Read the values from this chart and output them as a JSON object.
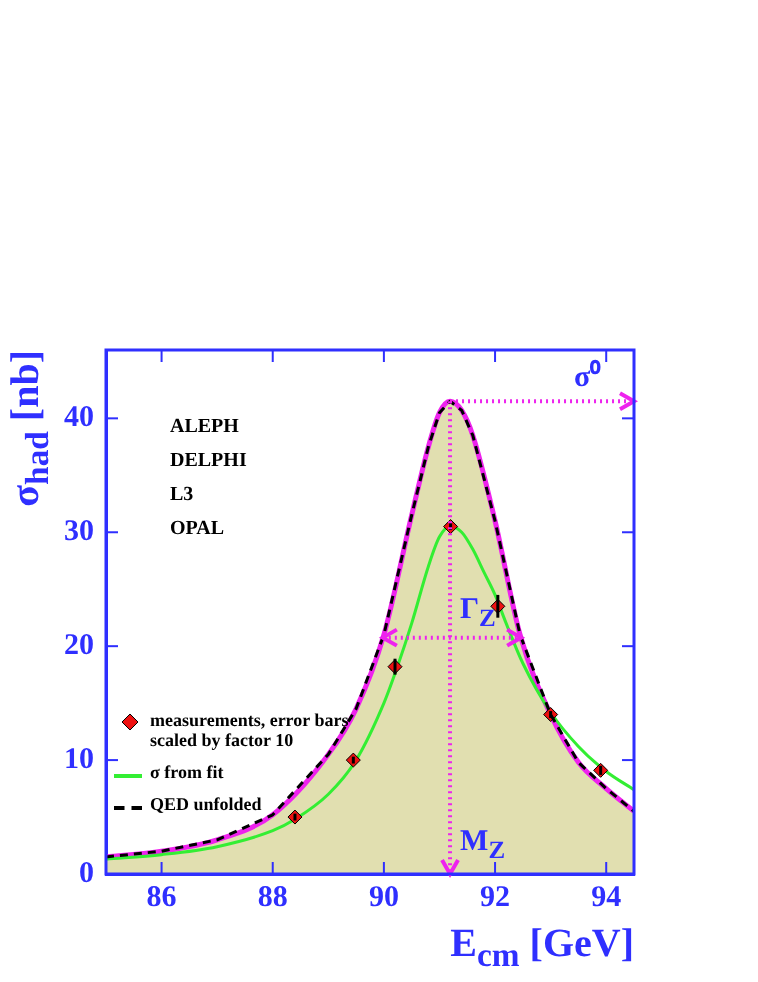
{
  "chart_data": {
    "type": "scatter",
    "xlabel": "E$_{cm}$ [GeV]",
    "ylabel": "σ$_{had}$ [nb]",
    "xlim": [
      85,
      94.5
    ],
    "xticks": [
      86,
      88,
      90,
      92,
      94
    ],
    "ylim": [
      0,
      46
    ],
    "yticks": [
      0,
      10,
      20,
      30,
      40
    ],
    "grid": false,
    "legend": "bottom left",
    "annotations": [
      "ALEPH",
      "DELPHI",
      "L3",
      "OPAL"
    ],
    "ref_lines": [
      {
        "axis": "y",
        "value": 41.5,
        "label": "σ⁰",
        "color": "#ee22ee",
        "line_style": "dotted"
      },
      {
        "axis": "x",
        "value": 91.19,
        "label": "M$_{Z}$",
        "color": "#ee22ee",
        "line_style": "dotted"
      },
      {
        "axis": "y",
        "value": 20.75,
        "label": "Γ$_{Z}$",
        "color": "#ee22ee",
        "line_style": "dotted"
      }
    ],
    "series": [
      {
        "name": "measurements, error bars scaled by factor 10",
        "color": "#ee1111",
        "marker": "diamond",
        "x": [
          88.4,
          89.45,
          90.2,
          91.2,
          92.05,
          93.0,
          93.9
        ],
        "values": [
          5.0,
          10.0,
          18.2,
          30.5,
          23.5,
          14.0,
          9.1
        ],
        "errors": [
          0.3,
          0.3,
          0.7,
          0.3,
          1.0,
          0.3,
          0.4
        ]
      },
      {
        "type": "line",
        "name": "σ from fit",
        "color": "#33ee33",
        "line_style": "solid",
        "x": [
          85,
          86,
          87,
          88,
          88.4,
          89,
          89.5,
          90,
          90.25,
          90.5,
          90.8,
          91,
          91.2,
          91.4,
          91.6,
          91.8,
          92,
          92.2,
          92.5,
          93,
          93.5,
          94,
          94.5
        ],
        "values": [
          1.3,
          1.7,
          2.4,
          3.8,
          4.8,
          7,
          10,
          15,
          18.3,
          22,
          27,
          29.6,
          30.5,
          30,
          28.5,
          26.5,
          24.5,
          22,
          18.5,
          14.2,
          11.2,
          9,
          7.4
        ]
      },
      {
        "type": "line",
        "color": "#ee22ee",
        "line_style": "solid",
        "x": [
          85,
          86,
          87,
          88,
          89,
          89.5,
          90,
          90.5,
          90.8,
          91,
          91.19,
          91.4,
          91.6,
          92,
          92.45,
          93,
          93.5,
          94,
          94.5
        ],
        "values": [
          1.5,
          2.0,
          3.0,
          5.2,
          10.5,
          14.5,
          21,
          31.5,
          37.5,
          40.5,
          41.5,
          40.7,
          38.5,
          31,
          21,
          14,
          9.8,
          7.5,
          5.5
        ]
      },
      {
        "type": "area",
        "name": "QED unfolded",
        "color": "#000000",
        "line_style": "dashed",
        "x": [
          85,
          86,
          87,
          88,
          89,
          89.5,
          90,
          90.5,
          90.8,
          91,
          91.19,
          91.4,
          91.6,
          92,
          92.45,
          93,
          93.5,
          94,
          94.5
        ],
        "values": [
          1.5,
          2.0,
          3.0,
          5.2,
          10.5,
          14.5,
          21,
          31.5,
          37.5,
          40.5,
          41.5,
          40.7,
          38.5,
          31,
          21,
          14,
          9.8,
          7.5,
          5.5
        ]
      }
    ]
  }
}
